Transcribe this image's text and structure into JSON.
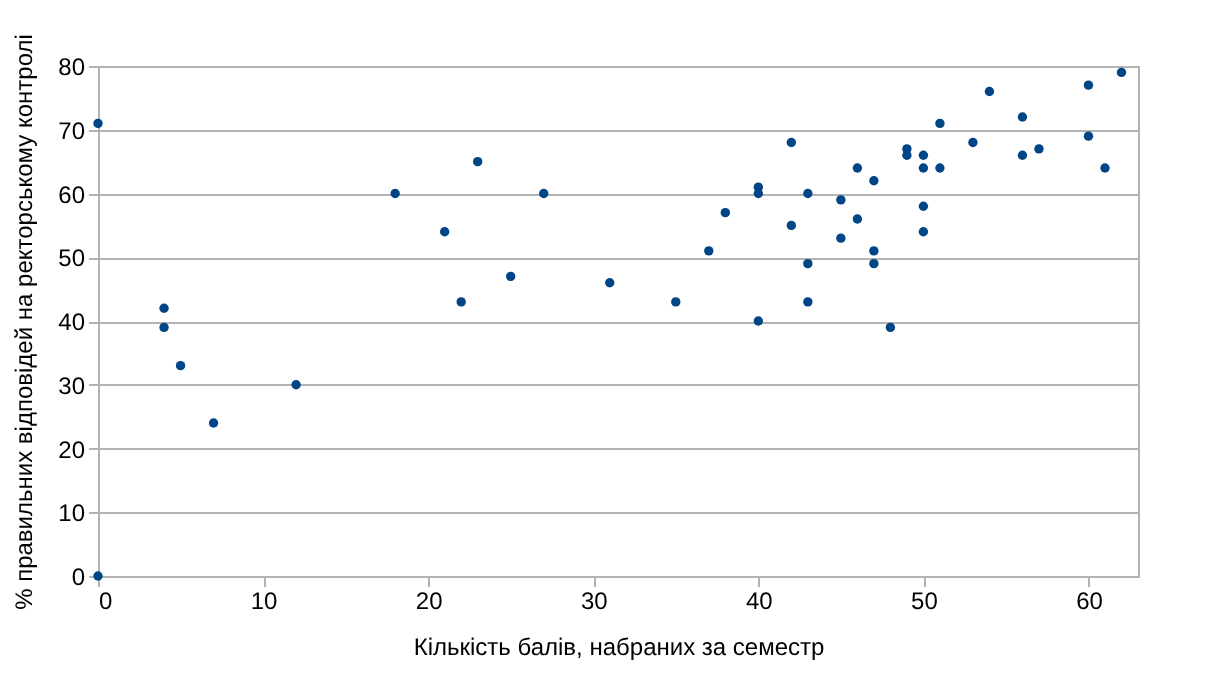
{
  "chart_data": {
    "type": "scatter",
    "xlabel": "Кількість балів, набраних за семестр",
    "ylabel": "% правильних відповідей на ректорському контролі",
    "x": [
      0,
      0,
      4,
      4,
      5,
      7,
      12,
      18,
      21,
      22,
      23,
      25,
      27,
      31,
      35,
      37,
      38,
      40,
      40,
      40,
      42,
      42,
      43,
      43,
      43,
      45,
      45,
      46,
      46,
      47,
      47,
      47,
      48,
      49,
      49,
      50,
      50,
      50,
      50,
      51,
      51,
      53,
      54,
      56,
      56,
      57,
      60,
      60,
      61,
      62
    ],
    "series": [
      {
        "color": "#004586",
        "values": [
          71,
          0,
          42,
          39,
          33,
          24,
          30,
          60,
          54,
          43,
          65,
          47,
          60,
          46,
          43,
          51,
          57,
          40,
          61,
          60,
          68,
          55,
          60,
          49,
          43,
          59,
          53,
          64,
          56,
          62,
          51,
          49,
          39,
          67,
          66,
          66,
          64,
          58,
          54,
          71,
          64,
          68,
          76,
          72,
          66,
          67,
          77,
          69,
          64,
          79
        ]
      }
    ],
    "xlim": [
      0,
      63
    ],
    "xticks": [
      0,
      10,
      20,
      30,
      40,
      50,
      60
    ],
    "ylim": [
      0,
      80
    ],
    "yticks": [
      0,
      10,
      20,
      30,
      40,
      50,
      60,
      70,
      80
    ],
    "grid": "y",
    "marker": "circle",
    "legend": false
  }
}
